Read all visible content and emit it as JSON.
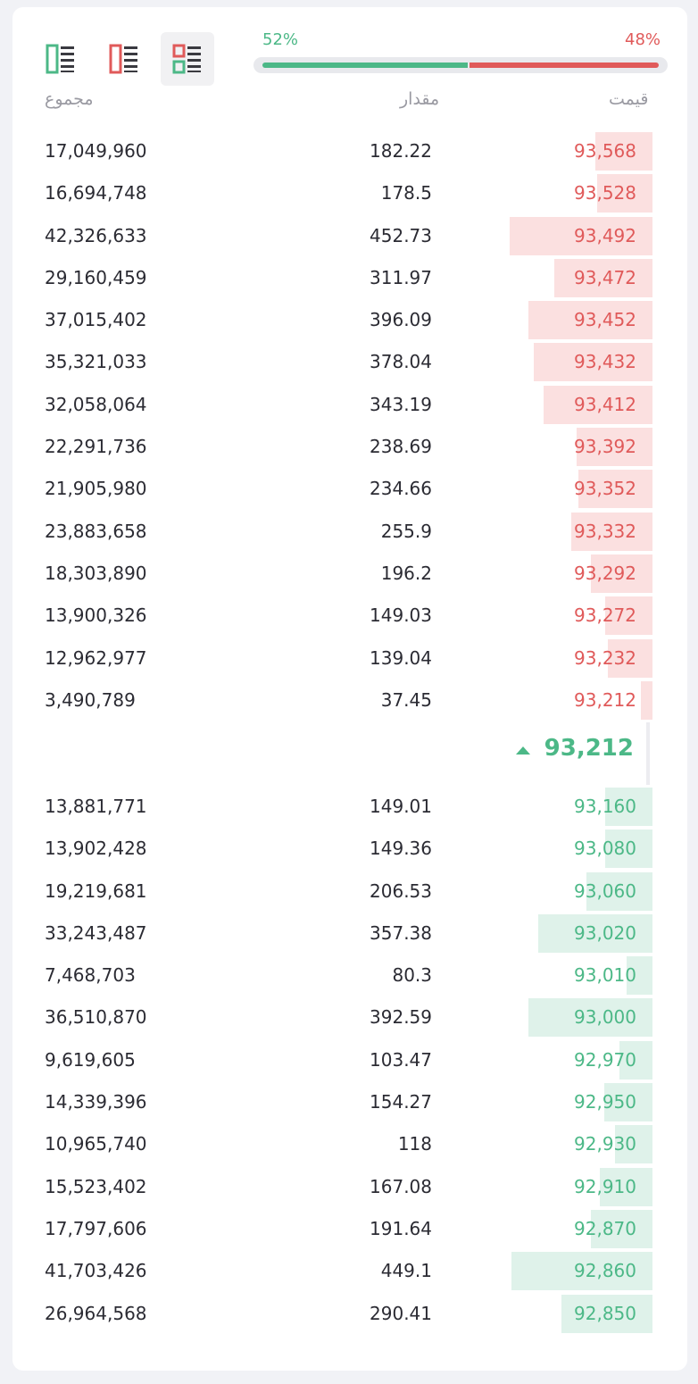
{
  "view_modes": [
    {
      "name": "view-bids-only-button",
      "icon": "bids-only-icon"
    },
    {
      "name": "view-asks-only-button",
      "icon": "asks-only-icon"
    },
    {
      "name": "view-both-button",
      "icon": "both-sides-icon",
      "active": true
    }
  ],
  "ratio": {
    "buy_label": "52%",
    "sell_label": "48%",
    "buy_fraction": 0.52,
    "sell_fraction": 0.48,
    "buy_color": "#4cb887",
    "sell_color": "#e05a5a"
  },
  "headers": {
    "total": "مجموع",
    "amount": "مقدار",
    "price": "قیمت"
  },
  "asks": [
    {
      "total": "17,049,960",
      "amount": "182.22",
      "price": "93,568",
      "depth": 0.4
    },
    {
      "total": "16,694,748",
      "amount": "178.5",
      "price": "93,528",
      "depth": 0.39
    },
    {
      "total": "42,326,633",
      "amount": "452.73",
      "price": "93,492",
      "depth": 1.0
    },
    {
      "total": "29,160,459",
      "amount": "311.97",
      "price": "93,472",
      "depth": 0.69
    },
    {
      "total": "37,015,402",
      "amount": "396.09",
      "price": "93,452",
      "depth": 0.87
    },
    {
      "total": "35,321,033",
      "amount": "378.04",
      "price": "93,432",
      "depth": 0.83
    },
    {
      "total": "32,058,064",
      "amount": "343.19",
      "price": "93,412",
      "depth": 0.76
    },
    {
      "total": "22,291,736",
      "amount": "238.69",
      "price": "93,392",
      "depth": 0.53
    },
    {
      "total": "21,905,980",
      "amount": "234.66",
      "price": "93,352",
      "depth": 0.52
    },
    {
      "total": "23,883,658",
      "amount": "255.9",
      "price": "93,332",
      "depth": 0.57
    },
    {
      "total": "18,303,890",
      "amount": "196.2",
      "price": "93,292",
      "depth": 0.43
    },
    {
      "total": "13,900,326",
      "amount": "149.03",
      "price": "93,272",
      "depth": 0.33
    },
    {
      "total": "12,962,977",
      "amount": "139.04",
      "price": "93,232",
      "depth": 0.31
    },
    {
      "total": "3,490,789",
      "amount": "37.45",
      "price": "93,212",
      "depth": 0.08
    }
  ],
  "last_price": {
    "value": "93,212",
    "direction": "up",
    "icon": "triangle-up-icon",
    "color": "#4cb887"
  },
  "bids": [
    {
      "total": "13,881,771",
      "amount": "149.01",
      "price": "93,160",
      "depth": 0.33
    },
    {
      "total": "13,902,428",
      "amount": "149.36",
      "price": "93,080",
      "depth": 0.33
    },
    {
      "total": "19,219,681",
      "amount": "206.53",
      "price": "93,060",
      "depth": 0.46
    },
    {
      "total": "33,243,487",
      "amount": "357.38",
      "price": "93,020",
      "depth": 0.8
    },
    {
      "total": "7,468,703",
      "amount": "80.3",
      "price": "93,010",
      "depth": 0.18
    },
    {
      "total": "36,510,870",
      "amount": "392.59",
      "price": "93,000",
      "depth": 0.87
    },
    {
      "total": "9,619,605",
      "amount": "103.47",
      "price": "92,970",
      "depth": 0.23
    },
    {
      "total": "14,339,396",
      "amount": "154.27",
      "price": "92,950",
      "depth": 0.34
    },
    {
      "total": "10,965,740",
      "amount": "118",
      "price": "92,930",
      "depth": 0.26
    },
    {
      "total": "15,523,402",
      "amount": "167.08",
      "price": "92,910",
      "depth": 0.37
    },
    {
      "total": "17,797,606",
      "amount": "191.64",
      "price": "92,870",
      "depth": 0.43
    },
    {
      "total": "41,703,426",
      "amount": "449.1",
      "price": "92,860",
      "depth": 0.99
    },
    {
      "total": "26,964,568",
      "amount": "290.41",
      "price": "92,850",
      "depth": 0.64
    }
  ]
}
